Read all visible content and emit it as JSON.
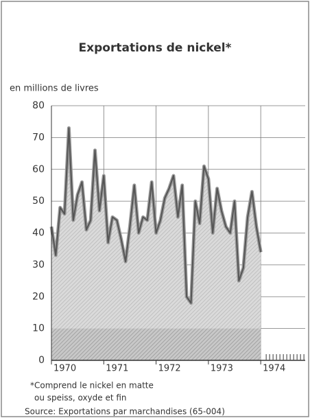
{
  "chart_data": {
    "type": "area",
    "title": "Exportations de nickel*",
    "ylabel": "en millions de livres",
    "footnote": [
      "*Comprend le nickel en matte",
      "ou speiss, oxyde et fin"
    ],
    "source": "Source: Exportations par marchandises (65-004)",
    "x": [
      1970,
      1970.083,
      1970.167,
      1970.25,
      1970.333,
      1970.417,
      1970.5,
      1970.583,
      1970.667,
      1970.75,
      1970.833,
      1970.917,
      1971,
      1971.083,
      1971.167,
      1971.25,
      1971.333,
      1971.417,
      1971.5,
      1971.583,
      1971.667,
      1971.75,
      1971.833,
      1971.917,
      1972,
      1972.083,
      1972.167,
      1972.25,
      1972.333,
      1972.417,
      1972.5,
      1972.583,
      1972.667,
      1972.75,
      1972.833,
      1972.917,
      1973,
      1973.083,
      1973.167,
      1973.25,
      1973.333,
      1973.417,
      1973.5,
      1973.583,
      1973.667,
      1973.75,
      1973.833,
      1973.917,
      1974
    ],
    "series": [
      {
        "color": "#555555",
        "values": [
          42,
          33,
          48,
          46,
          73,
          44,
          52,
          56,
          41,
          44,
          66,
          47,
          58,
          37,
          45,
          44,
          38,
          31,
          42,
          55,
          40,
          45,
          44,
          56,
          40,
          44,
          51,
          54,
          58,
          45,
          55,
          20,
          18,
          50,
          43,
          61,
          57,
          40,
          54,
          47,
          42,
          40,
          50,
          25,
          29,
          45,
          53,
          42,
          34
        ]
      }
    ],
    "xlim": [
      1970,
      1974.85
    ],
    "xticks": [
      1970,
      1971,
      1972,
      1973,
      1974
    ],
    "ylim": [
      0,
      80
    ],
    "yticks": [
      0,
      10,
      20,
      30,
      40,
      50,
      60,
      70,
      80
    ],
    "grid": true
  }
}
